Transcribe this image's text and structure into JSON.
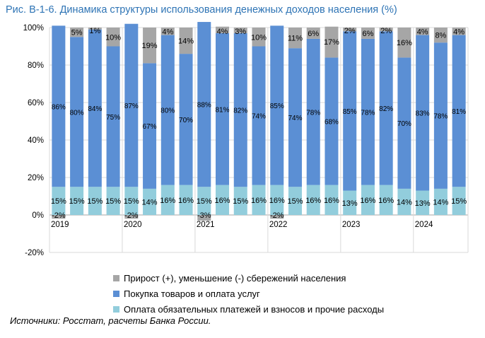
{
  "title": "Рис. В-1-6. Динамика структуры использования денежных доходов населения (%)",
  "source": "Источники: Росстат, расчеты Банка России.",
  "colors": {
    "savings": "#a6a6a6",
    "goods": "#5b8fd4",
    "mandatory": "#92cddc",
    "grid": "#d9d9d9",
    "title": "#2e74b5"
  },
  "chart_data": {
    "type": "bar",
    "stacked": true,
    "ylim": [
      -20,
      100
    ],
    "yticks": [
      "-20%",
      "0%",
      "20%",
      "40%",
      "60%",
      "80%",
      "100%"
    ],
    "ytick_values": [
      -20,
      0,
      20,
      40,
      60,
      80,
      100
    ],
    "year_labels": [
      "2019",
      "2020",
      "2021",
      "2022",
      "2023",
      "2024"
    ],
    "grid": true,
    "legend_position": "bottom",
    "series": [
      {
        "name": "Оплата обязательных платежей и взносов и прочие расходы",
        "color": "#92cddc",
        "values": [
          15,
          15,
          15,
          15,
          15,
          14,
          16,
          16,
          15,
          16,
          15,
          16,
          16,
          15,
          16,
          16,
          13,
          16,
          16,
          14,
          13,
          14,
          15
        ],
        "labels": [
          "15%",
          "15%",
          "15%",
          "15%",
          "15%",
          "14%",
          "16%",
          "16%",
          "15%",
          "16%",
          "15%",
          "16%",
          "16%",
          "15%",
          "16%",
          "16%",
          "13%",
          "16%",
          "16%",
          "14%",
          "13%",
          "14%",
          "15%"
        ]
      },
      {
        "name": "Покупка товаров и оплата услуг",
        "color": "#5b8fd4",
        "values": [
          86,
          80,
          84,
          75,
          87,
          67,
          80,
          70,
          88,
          81,
          82,
          74,
          85,
          74,
          78,
          68,
          85,
          78,
          82,
          70,
          83,
          78,
          81
        ],
        "labels": [
          "86%",
          "80%",
          "84%",
          "75%",
          "87%",
          "67%",
          "80%",
          "70%",
          "88%",
          "81%",
          "82%",
          "74%",
          "85%",
          "74%",
          "78%",
          "68%",
          "85%",
          "78%",
          "82%",
          "70%",
          "83%",
          "78%",
          "81%"
        ]
      },
      {
        "name": "Прирост (+), уменьшение (-) сбережений населения",
        "color": "#a6a6a6",
        "values": [
          -2,
          5,
          1,
          10,
          -2,
          19,
          4,
          14,
          -3,
          4,
          3,
          10,
          -2,
          11,
          6,
          17,
          2,
          6,
          2,
          16,
          4,
          8,
          4
        ],
        "labels": [
          "-2%",
          "5%",
          "1%",
          "10%",
          "-2%",
          "19%",
          "4%",
          "14%",
          "-3%",
          "4%",
          "3%",
          "10%",
          "-2%",
          "11%",
          "6%",
          "17%",
          "2%",
          "6%",
          "2%",
          "16%",
          "4%",
          "8%",
          "4%"
        ]
      }
    ],
    "legend_order": [
      "Прирост (+), уменьшение (-) сбережений населения",
      "Покупка товаров и оплата услуг",
      "Оплата обязательных платежей и взносов и прочие расходы"
    ]
  }
}
